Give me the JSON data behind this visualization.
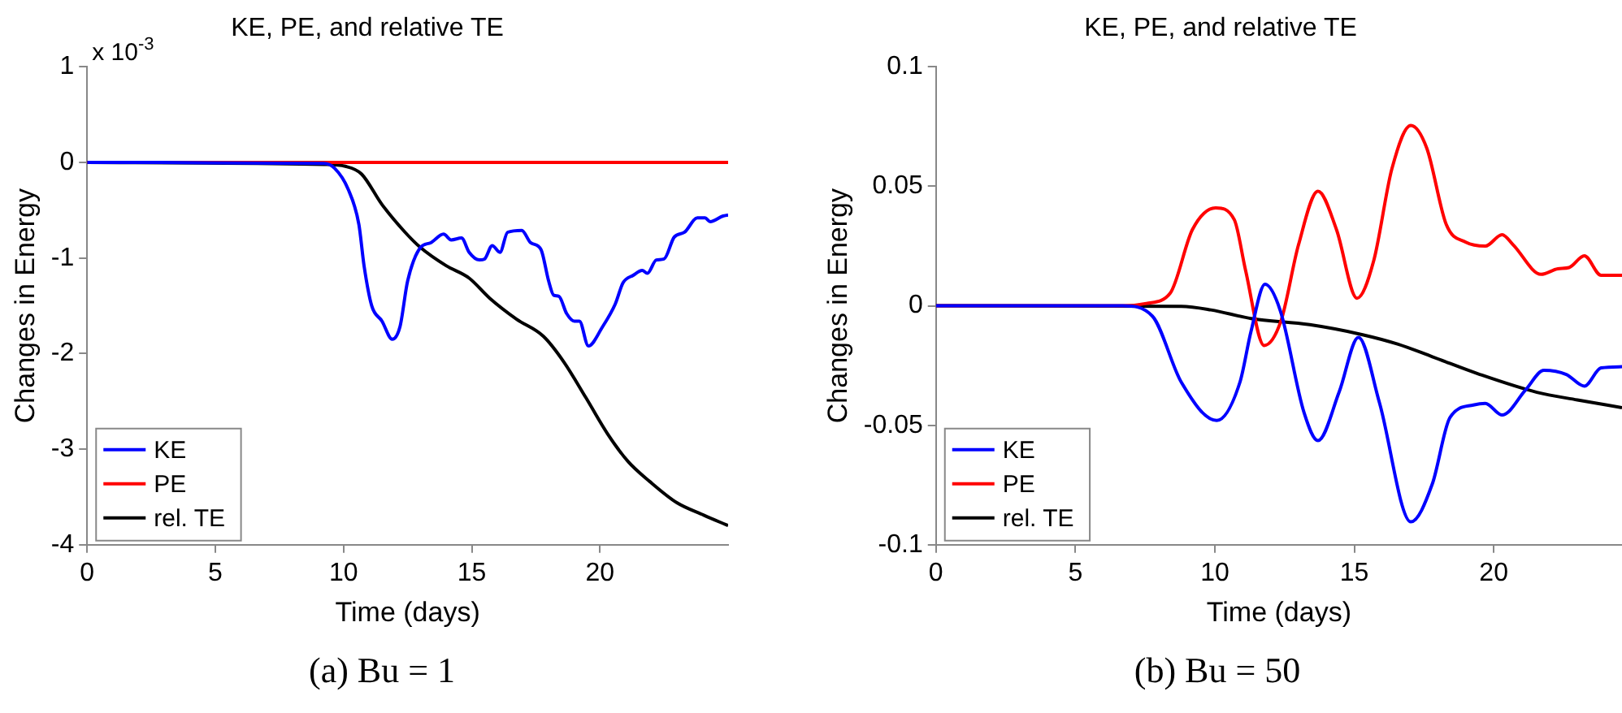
{
  "chart_data": [
    {
      "type": "line",
      "title": "KE, PE, and relative TE",
      "xlabel": "Time (days)",
      "ylabel": "Changes in Energy",
      "annotations": [
        "x 10$^{-3}$",
        "(a) Bu = 1"
      ],
      "xlim": [
        0,
        25
      ],
      "xticks": [
        0,
        5,
        10,
        15,
        20
      ],
      "ylim": [
        -4,
        1
      ],
      "yticks": [
        -4,
        -3,
        -2,
        -1,
        0,
        1
      ],
      "grid": false,
      "legend": "bottom left",
      "marker": "none",
      "line_style": "solid",
      "series": [
        {
          "name": "KE",
          "color": "#0000ff",
          "x": [
            0,
            9.24,
            9.65,
            10.18,
            10.6,
            10.8,
            11.1,
            11.5,
            11.9,
            12.2,
            12.5,
            13.0,
            13.4,
            13.9,
            14.2,
            14.6,
            14.9,
            15.3,
            15.5,
            15.8,
            16.1,
            16.4,
            16.95,
            17.3,
            17.7,
            18.0,
            18.2,
            18.4,
            18.7,
            19.0,
            19.2,
            19.55,
            20.1,
            20.6,
            20.9,
            21.3,
            21.65,
            21.85,
            22.2,
            22.5,
            22.9,
            23.3,
            23.8,
            24.1,
            24.3,
            24.8,
            25
          ],
          "values": [
            0,
            -0.01,
            -0.06,
            -0.28,
            -0.65,
            -1.08,
            -1.5,
            -1.66,
            -1.85,
            -1.72,
            -1.24,
            -0.89,
            -0.84,
            -0.75,
            -0.81,
            -0.79,
            -0.94,
            -1.02,
            -1.01,
            -0.87,
            -0.94,
            -0.73,
            -0.71,
            -0.84,
            -0.91,
            -1.24,
            -1.39,
            -1.4,
            -1.58,
            -1.66,
            -1.66,
            -1.92,
            -1.72,
            -1.48,
            -1.26,
            -1.18,
            -1.13,
            -1.16,
            -1.02,
            -1.01,
            -0.78,
            -0.73,
            -0.58,
            -0.58,
            -0.62,
            -0.56,
            -0.55
          ]
        },
        {
          "name": "PE",
          "color": "#ff0000",
          "x": [
            0,
            25
          ],
          "values": [
            0,
            0
          ]
        },
        {
          "name": "rel. TE",
          "color": "#000000",
          "x": [
            0,
            9.24,
            10.07,
            10.7,
            11.5,
            12.4,
            13.0,
            14.0,
            14.9,
            15.7,
            16.75,
            17.8,
            18.6,
            19.45,
            20.3,
            21.1,
            21.95,
            23.0,
            24.05,
            25
          ],
          "values": [
            0,
            -0.02,
            -0.04,
            -0.12,
            -0.44,
            -0.73,
            -0.89,
            -1.08,
            -1.21,
            -1.42,
            -1.64,
            -1.82,
            -2.09,
            -2.46,
            -2.84,
            -3.13,
            -3.34,
            -3.56,
            -3.69,
            -3.8
          ]
        }
      ]
    },
    {
      "type": "line",
      "title": "KE, PE, and relative TE",
      "xlabel": "Time (days)",
      "ylabel": "Changes in Energy",
      "annotations": [
        "(b) Bu = 50"
      ],
      "xlim": [
        0,
        24.6
      ],
      "xticks": [
        0,
        5,
        10,
        15,
        20
      ],
      "ylim": [
        -0.1,
        0.1
      ],
      "yticks": [
        -0.1,
        -0.05,
        0,
        0.05,
        0.1
      ],
      "grid": false,
      "legend": "bottom left",
      "marker": "none",
      "line_style": "solid",
      "series": [
        {
          "name": "KE",
          "color": "#0000ff",
          "x": [
            0,
            6.7,
            7.76,
            8.8,
            10.07,
            10.9,
            11.3,
            11.8,
            12.35,
            13.2,
            13.7,
            14.46,
            15.15,
            15.9,
            17.03,
            17.8,
            18.43,
            19.27,
            19.7,
            20.3,
            21.15,
            21.8,
            22.6,
            23.25,
            23.85,
            24.6
          ],
          "values": [
            0,
            0,
            -0.0043,
            -0.032,
            -0.048,
            -0.032,
            -0.0106,
            0.009,
            -0.0021,
            -0.0447,
            -0.0564,
            -0.036,
            -0.0132,
            -0.0404,
            -0.0904,
            -0.0745,
            -0.0468,
            -0.0415,
            -0.0408,
            -0.0457,
            -0.0351,
            -0.027,
            -0.0287,
            -0.0336,
            -0.026,
            -0.0255
          ]
        },
        {
          "name": "PE",
          "color": "#ff0000",
          "x": [
            0,
            6.7,
            7.55,
            8.4,
            9.2,
            10.03,
            10.7,
            11.1,
            11.77,
            12.37,
            13.0,
            13.7,
            14.36,
            15.1,
            15.7,
            16.35,
            17.03,
            17.6,
            18.3,
            19.0,
            19.7,
            20.3,
            20.7,
            21.7,
            22.3,
            22.7,
            23.25,
            23.85,
            24.6
          ],
          "values": [
            0,
            0,
            0.001,
            0.0053,
            0.032,
            0.041,
            0.036,
            0.015,
            -0.0166,
            -0.0064,
            0.0255,
            0.048,
            0.032,
            0.0032,
            0.019,
            0.0574,
            0.0755,
            0.066,
            0.034,
            0.0266,
            0.025,
            0.0298,
            0.0255,
            0.0132,
            0.0155,
            0.016,
            0.0209,
            0.0128,
            0.0128
          ]
        },
        {
          "name": "rel. TE",
          "color": "#000000",
          "x": [
            0,
            8.8,
            9.86,
            11.3,
            13.4,
            15.3,
            16.55,
            17.8,
            19.5,
            21.55,
            23.0,
            24.6
          ],
          "values": [
            0,
            -0.0002,
            -0.0017,
            -0.0053,
            -0.0079,
            -0.0121,
            -0.016,
            -0.0213,
            -0.0287,
            -0.0362,
            -0.0394,
            -0.0426
          ]
        }
      ]
    }
  ]
}
